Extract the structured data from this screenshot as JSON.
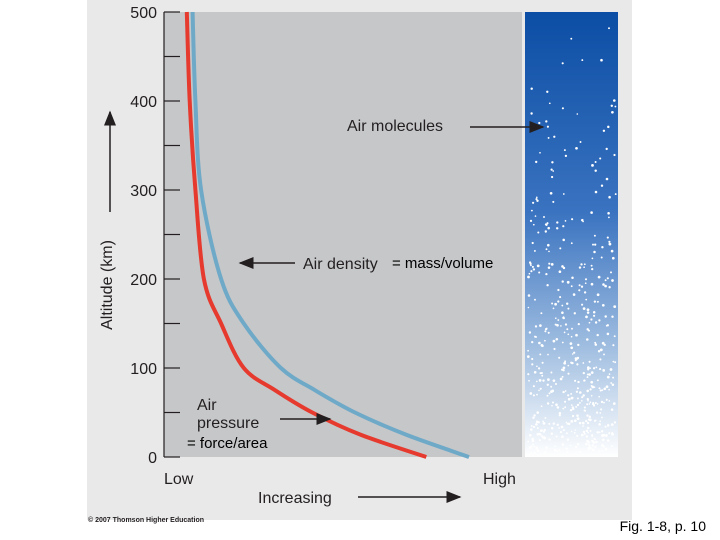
{
  "chart_data": {
    "type": "line",
    "ylabel": "Altitude (km)",
    "xlabel": "Increasing",
    "y_ticks": [
      "0",
      "100",
      "200",
      "300",
      "400",
      "500"
    ],
    "ylim": [
      0,
      500
    ],
    "x_tick_labels": [
      "Low",
      "High"
    ],
    "x_scale": "relative (Low to High), unitless",
    "series": [
      {
        "color": "#e63a2e",
        "x": [
          0.85,
          0.62,
          0.45,
          0.32,
          0.21,
          0.13,
          0.07,
          0.04,
          0.02,
          0.01
        ],
        "y": [
          0,
          25,
          50,
          75,
          100,
          150,
          200,
          300,
          400,
          500
        ]
      },
      {
        "color": "#6fa9c8",
        "x": [
          1.0,
          0.78,
          0.6,
          0.46,
          0.34,
          0.21,
          0.13,
          0.06,
          0.04,
          0.03
        ],
        "y": [
          0,
          25,
          50,
          75,
          100,
          150,
          200,
          300,
          400,
          500
        ]
      }
    ],
    "annotations": [
      {
        "text": "Air molecules"
      },
      {
        "text": "Air density",
        "suffix": "= mass/volume"
      },
      {
        "text": "Air",
        "line2": "pressure",
        "suffix": "= force/area"
      }
    ],
    "grid": false,
    "legend": "none"
  },
  "colors": {
    "plot_background": "#c6c7c9",
    "molecule_strip_top": "#0c4ea5",
    "molecule_strip_bottom": "#ffffff",
    "red_line": "#e63a2e",
    "blue_line": "#6fa9c8"
  },
  "footer": {
    "copyright": "© 2007 Thomson Higher Education",
    "caption": "Fig. 1-8, p. 10"
  }
}
